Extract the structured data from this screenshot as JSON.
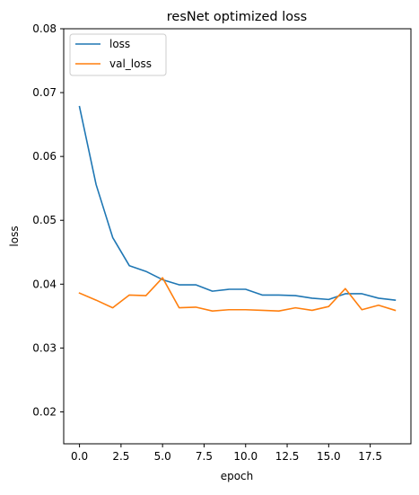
{
  "chart_data": {
    "type": "line",
    "title": "resNet optimized loss",
    "xlabel": "epoch",
    "ylabel": "loss",
    "xlim": [
      -0.95,
      19.95
    ],
    "ylim": [
      0.015,
      0.08
    ],
    "xticks": [
      0.0,
      2.5,
      5.0,
      7.5,
      10.0,
      12.5,
      15.0,
      17.5
    ],
    "xtick_labels": [
      "0.0",
      "2.5",
      "5.0",
      "7.5",
      "10.0",
      "12.5",
      "15.0",
      "17.5"
    ],
    "yticks": [
      0.02,
      0.03,
      0.04,
      0.05,
      0.06,
      0.07,
      0.08
    ],
    "ytick_labels": [
      "0.02",
      "0.03",
      "0.04",
      "0.05",
      "0.06",
      "0.07",
      "0.08"
    ],
    "grid": false,
    "legend_position": "top-left",
    "x": [
      0,
      1,
      2,
      3,
      4,
      5,
      6,
      7,
      8,
      9,
      10,
      11,
      12,
      13,
      14,
      15,
      16,
      17,
      18,
      19
    ],
    "series": [
      {
        "name": "loss",
        "color": "#1f77b4",
        "values": [
          0.0678,
          0.0556,
          0.0473,
          0.0429,
          0.042,
          0.0407,
          0.0399,
          0.0399,
          0.0389,
          0.0392,
          0.0392,
          0.0383,
          0.0383,
          0.0382,
          0.0378,
          0.0376,
          0.0385,
          0.0385,
          0.0378,
          0.0375
        ]
      },
      {
        "name": "val_loss",
        "color": "#ff7f0e",
        "values": [
          0.0386,
          0.0375,
          0.0363,
          0.0383,
          0.0382,
          0.041,
          0.0363,
          0.0364,
          0.0358,
          0.036,
          0.036,
          0.0359,
          0.0358,
          0.0363,
          0.0359,
          0.0365,
          0.0393,
          0.036,
          0.0367,
          0.0359
        ]
      }
    ]
  }
}
